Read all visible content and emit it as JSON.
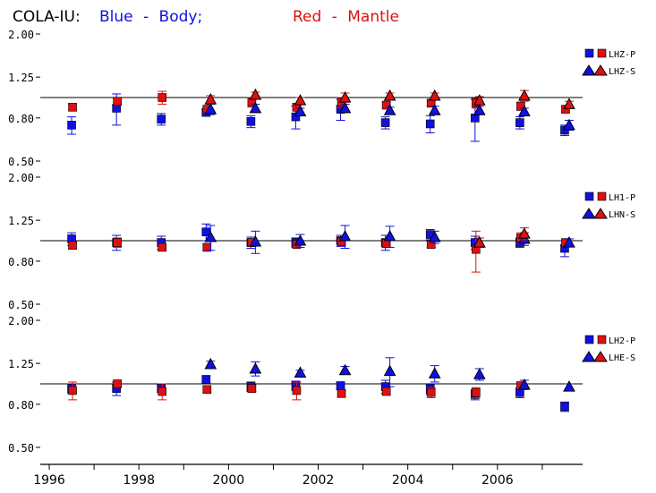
{
  "title": {
    "prefix": "COLA-IU:",
    "blue_part": "Blue - Body;",
    "red_part": "Red - Mantle"
  },
  "colors": {
    "blue": "#1010e0",
    "red": "#e01010",
    "axis": "#000000"
  },
  "chart_data": {
    "type": "scatter",
    "x_axis": {
      "range": [
        1995.8,
        2007.9
      ],
      "tick_labels": [
        "1996",
        "1998",
        "2000",
        "2002",
        "2004",
        "2006"
      ],
      "minor_tick_every": 1
    },
    "y_ticks": [
      "2.00",
      "1.25",
      "0.80",
      "0.50"
    ],
    "y_tick_values": [
      2.0,
      1.25,
      0.8,
      0.5
    ],
    "y_scale": "log",
    "ylim": [
      0.43,
      2.05
    ],
    "reference_line": 1.0,
    "years": [
      1996.5,
      1997.5,
      1998.5,
      1999.5,
      2000.5,
      2001.5,
      2002.5,
      2003.5,
      2004.5,
      2005.5,
      2006.5,
      2007.5
    ],
    "panels": [
      {
        "legend": [
          "LHZ-P",
          "LHZ-S"
        ],
        "series": [
          {
            "marker": "square",
            "color": "blue",
            "values": [
              0.74,
              0.89,
              0.79,
              0.85,
              0.77,
              0.81,
              0.88,
              0.76,
              0.75,
              0.8,
              0.76,
              0.7
            ],
            "errors": [
              0.07,
              0.15,
              0.05,
              0.03,
              0.05,
              0.1,
              0.1,
              0.05,
              0.07,
              0.18,
              0.05,
              0.04
            ]
          },
          {
            "marker": "square",
            "color": "red",
            "values": [
              0.9,
              0.96,
              1.0,
              0.88,
              0.95,
              0.9,
              0.95,
              0.92,
              0.94,
              0.94,
              0.91,
              0.88
            ],
            "errors": [
              0.03,
              0.03,
              0.07,
              0.03,
              0.05,
              0.03,
              0.05,
              0.03,
              0.03,
              0.05,
              0.04,
              0.03
            ]
          },
          {
            "marker": "triangle",
            "color": "blue",
            "values": [
              null,
              null,
              null,
              0.88,
              0.89,
              0.86,
              0.89,
              0.87,
              0.87,
              0.87,
              0.86,
              0.74
            ],
            "errors": [
              null,
              null,
              null,
              0.05,
              0.04,
              0.03,
              0.04,
              0.03,
              0.04,
              0.04,
              0.03,
              0.04
            ]
          },
          {
            "marker": "triangle",
            "color": "red",
            "values": [
              null,
              null,
              null,
              0.98,
              1.03,
              0.97,
              1.0,
              1.02,
              1.02,
              0.97,
              1.02,
              0.93
            ],
            "errors": [
              null,
              null,
              null,
              0.04,
              0.03,
              0.03,
              0.05,
              0.03,
              0.03,
              0.04,
              0.06,
              0.03
            ]
          }
        ]
      },
      {
        "legend": [
          "LH1-P",
          "LHN-S"
        ],
        "series": [
          {
            "marker": "square",
            "color": "blue",
            "values": [
              1.02,
              0.98,
              0.98,
              1.1,
              0.98,
              0.98,
              1.0,
              0.98,
              1.07,
              0.98,
              0.98,
              0.92
            ],
            "errors": [
              0.07,
              0.08,
              0.07,
              0.1,
              0.06,
              0.05,
              0.06,
              0.08,
              0.06,
              0.07,
              0.05,
              0.08
            ]
          },
          {
            "marker": "square",
            "color": "red",
            "values": [
              0.95,
              0.98,
              0.93,
              0.93,
              0.98,
              0.96,
              0.99,
              0.97,
              0.96,
              0.91,
              1.03,
              0.98
            ],
            "errors": [
              0.03,
              0.05,
              0.03,
              0.03,
              0.04,
              0.03,
              0.04,
              0.04,
              0.03,
              0.2,
              0.06,
              0.03
            ]
          },
          {
            "marker": "triangle",
            "color": "blue",
            "values": [
              null,
              null,
              null,
              1.04,
              0.99,
              1.0,
              1.05,
              1.05,
              1.04,
              0.98,
              1.02,
              0.98
            ],
            "errors": [
              null,
              null,
              null,
              0.14,
              0.12,
              0.07,
              0.13,
              0.12,
              0.07,
              0.05,
              0.07,
              0.04
            ]
          },
          {
            "marker": "triangle",
            "color": "red",
            "values": [
              null,
              null,
              null,
              null,
              null,
              null,
              null,
              null,
              null,
              0.98,
              1.08,
              null
            ],
            "errors": [
              null,
              null,
              null,
              null,
              null,
              null,
              null,
              null,
              null,
              0.05,
              0.07,
              null
            ]
          }
        ]
      },
      {
        "legend": [
          "LH2-P",
          "LHE-S"
        ],
        "series": [
          {
            "marker": "square",
            "color": "blue",
            "values": [
              0.95,
              0.95,
              0.95,
              1.05,
              0.97,
              0.98,
              0.98,
              0.97,
              0.94,
              0.89,
              0.91,
              0.78
            ],
            "errors": [
              0.05,
              0.07,
              0.04,
              0.04,
              0.05,
              0.05,
              0.04,
              0.07,
              0.05,
              0.05,
              0.05,
              0.04
            ]
          },
          {
            "marker": "square",
            "color": "red",
            "values": [
              0.93,
              1.0,
              0.92,
              0.94,
              0.95,
              0.93,
              0.9,
              0.92,
              0.91,
              0.91,
              0.98,
              null
            ],
            "errors": [
              0.09,
              0.04,
              0.08,
              0.03,
              0.03,
              0.09,
              0.03,
              0.03,
              0.05,
              0.05,
              0.04,
              null
            ]
          },
          {
            "marker": "triangle",
            "color": "blue",
            "values": [
              null,
              null,
              null,
              1.24,
              1.18,
              1.13,
              1.16,
              1.15,
              1.12,
              1.11,
              0.99,
              0.97
            ],
            "errors": [
              null,
              null,
              null,
              0.04,
              0.09,
              0.03,
              0.05,
              0.18,
              0.1,
              0.07,
              0.05,
              0.03
            ]
          }
        ]
      }
    ]
  }
}
